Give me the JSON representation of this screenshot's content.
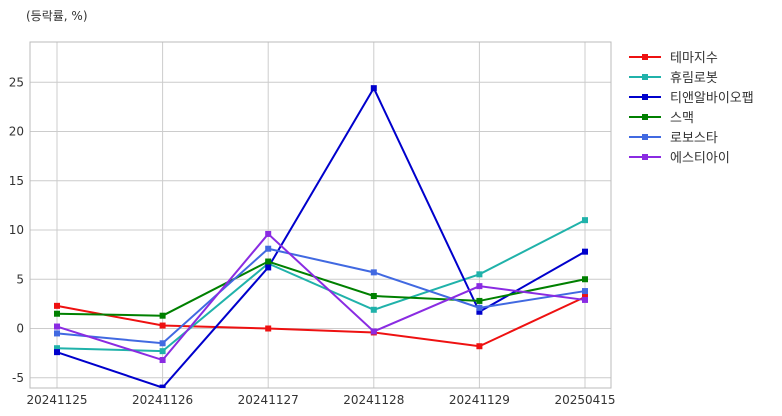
{
  "chart_data": {
    "type": "line",
    "unit_label": "(등락률, %)",
    "categories": [
      "20241125",
      "20241126",
      "20241127",
      "20241128",
      "20241129",
      "20250415"
    ],
    "ylim": [
      -6,
      29
    ],
    "yticks": [
      -5,
      0,
      5,
      10,
      15,
      20,
      25
    ],
    "grid": true,
    "legend_position": "right",
    "series": [
      {
        "name": "테마지수",
        "color": "#ee1111",
        "values": [
          2.3,
          0.3,
          0.0,
          -0.4,
          -1.8,
          3.2
        ]
      },
      {
        "name": "휴림로봇",
        "color": "#20b2aa",
        "values": [
          -2.0,
          -2.3,
          6.6,
          1.9,
          5.5,
          11.0
        ]
      },
      {
        "name": "티앤알바이오팹",
        "color": "#0000cc",
        "values": [
          -2.4,
          -6.0,
          6.2,
          24.4,
          1.7,
          7.8
        ]
      },
      {
        "name": "스맥",
        "color": "#008000",
        "values": [
          1.5,
          1.3,
          6.8,
          3.3,
          2.8,
          5.0
        ]
      },
      {
        "name": "로보스타",
        "color": "#4169e1",
        "values": [
          -0.5,
          -1.5,
          8.1,
          5.7,
          2.1,
          3.8
        ]
      },
      {
        "name": "에스티아이",
        "color": "#8a2be2",
        "values": [
          0.2,
          -3.2,
          9.6,
          -0.3,
          4.3,
          2.9
        ]
      }
    ]
  }
}
